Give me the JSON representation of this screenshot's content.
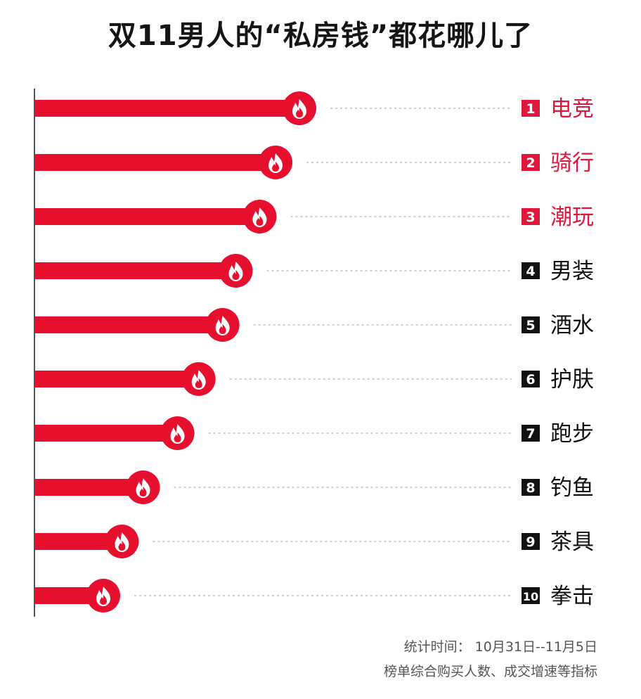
{
  "title": "双11男人的“私房钱”都花哪儿了",
  "footnote": {
    "period": "统计时间： 10月31日--11月5日",
    "basis": "榜单综合购买人数、成交增速等指标"
  },
  "colors": {
    "bar": "#e60f2d",
    "highlight_rank": "#e0163a",
    "normal_rank": "#111111",
    "flame_badge": "#e60f2d",
    "dotted_line": "#b4b4b4"
  },
  "icons": {
    "badge": "flame-icon"
  },
  "chart_data": {
    "type": "bar",
    "orientation": "horizontal",
    "value_scale": "relative popularity (no numeric axis shown)",
    "categories": [
      "电竞",
      "骑行",
      "潮玩",
      "男装",
      "酒水",
      "护肤",
      "跑步",
      "钓鱼",
      "茶具",
      "拳击"
    ],
    "ranks": [
      "1",
      "2",
      "3",
      "4",
      "5",
      "6",
      "7",
      "8",
      "9",
      "10"
    ],
    "values": [
      100,
      91,
      85,
      76,
      71,
      62,
      54,
      41,
      33,
      26
    ],
    "highlighted_ranks": [
      1,
      2,
      3
    ],
    "xlabel": "",
    "ylabel": "",
    "grid": false,
    "legend": "none"
  }
}
